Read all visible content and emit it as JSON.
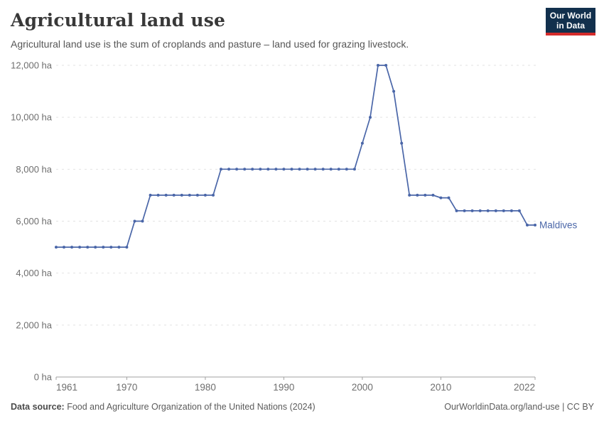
{
  "header": {
    "title": "Agricultural land use",
    "subtitle": "Agricultural land use is the sum of croplands and pasture – land used for grazing livestock."
  },
  "logo": {
    "line1": "Our World",
    "line2": "in Data"
  },
  "chart_data": {
    "type": "line",
    "title": "Agricultural land use",
    "unit": "ha",
    "x_start": 1961,
    "x_end": 2022,
    "x_ticks": [
      1961,
      1970,
      1980,
      1990,
      2000,
      2010,
      2022
    ],
    "y_ticks": [
      0,
      2000,
      4000,
      6000,
      8000,
      10000,
      12000
    ],
    "ylim": [
      0,
      12000
    ],
    "grid": "dashed-horizontal-gridlines",
    "legend_position": "end-of-line-label",
    "series": [
      {
        "name": "Maldives",
        "color": "#4a66a8",
        "values": [
          5000,
          5000,
          5000,
          5000,
          5000,
          5000,
          5000,
          5000,
          5000,
          5000,
          6000,
          6000,
          7000,
          7000,
          7000,
          7000,
          7000,
          7000,
          7000,
          7000,
          7000,
          8000,
          8000,
          8000,
          8000,
          8000,
          8000,
          8000,
          8000,
          8000,
          8000,
          8000,
          8000,
          8000,
          8000,
          8000,
          8000,
          8000,
          8000,
          9000,
          10000,
          12000,
          12000,
          11000,
          9000,
          7000,
          7000,
          7000,
          7000,
          6900,
          6900,
          6400,
          6400,
          6400,
          6400,
          6400,
          6400,
          6400,
          6400,
          6400,
          5850,
          5850
        ]
      }
    ]
  },
  "footer": {
    "source_label": "Data source:",
    "source_text": " Food and Agriculture Organization of the United Nations (2024)",
    "link_text": "OurWorldinData.org/land-use | CC BY"
  },
  "colors": {
    "line": "#4a66a8",
    "axis_text": "#6e6e6e",
    "grid": "#e2e2e2",
    "axis_line": "#a1a1a1",
    "logo_bg": "#12304d",
    "logo_red": "#d42b2b"
  }
}
